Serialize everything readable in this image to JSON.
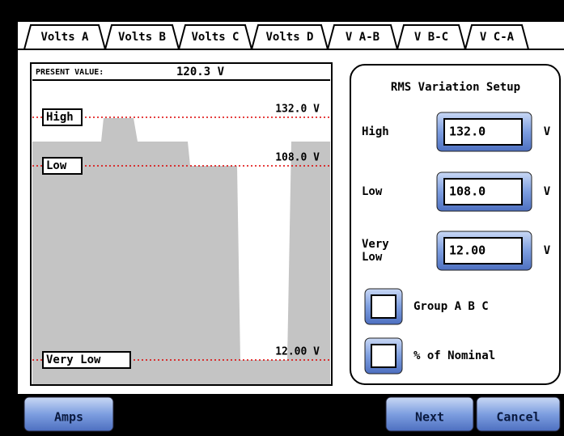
{
  "tabs": [
    "Volts A",
    "Volts B",
    "Volts C",
    "Volts D",
    "V A-B",
    "V B-C",
    "V C-A"
  ],
  "graph": {
    "present_value_label": "PRESENT VALUE:",
    "present_value": "120.3 V",
    "levels": [
      {
        "name": "High",
        "value": "132.0 V"
      },
      {
        "name": "Low",
        "value": "108.0 V"
      },
      {
        "name": "Very Low",
        "value": "12.00 V"
      }
    ]
  },
  "setup": {
    "title": "RMS Variation Setup",
    "fields": [
      {
        "label": "High",
        "value": "132.0",
        "unit": "V"
      },
      {
        "label": "Low",
        "value": "108.0",
        "unit": "V"
      },
      {
        "label": "Very Low",
        "value": "12.00",
        "unit": "V"
      }
    ],
    "checkboxes": [
      "Group A B C",
      "% of Nominal"
    ]
  },
  "buttons": {
    "left": "Amps",
    "next": "Next",
    "cancel": "Cancel"
  }
}
